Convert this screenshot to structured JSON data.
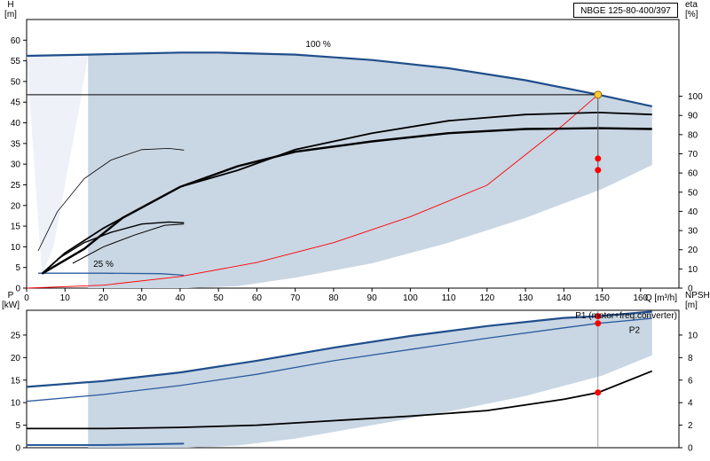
{
  "model_label": "NBGE 125-80-400/397",
  "colors": {
    "curve_dark": "#1f4e8c",
    "curve_mid": "#2a5c9e",
    "area_fill": "#c9d6e3",
    "area_light": "#eef2f8",
    "system_curve": "#ff0000",
    "marker": "#ff0000",
    "op_marker": "#ffcc33",
    "npsh": "#000000",
    "grid": "#bbbbbb"
  },
  "chart_data": [
    {
      "type": "line",
      "title": "",
      "xlabel": "Q [m³/h]",
      "ylabel_left": "H\n[m]",
      "ylabel_right": "eta\n[%]",
      "x_ticks": [
        0,
        10,
        20,
        30,
        40,
        50,
        60,
        70,
        80,
        90,
        100,
        110,
        120,
        130,
        140,
        150,
        160
      ],
      "y_ticks_left": [
        0,
        5,
        10,
        15,
        20,
        25,
        30,
        35,
        40,
        45,
        50,
        55,
        60
      ],
      "y_ticks_right": [
        0,
        10,
        20,
        30,
        40,
        50,
        60,
        70,
        80,
        90,
        100
      ],
      "xlim": [
        0,
        170
      ],
      "ylim": [
        0,
        65
      ],
      "ylim_right": [
        0,
        140
      ],
      "curve_labels": {
        "top": "100 %",
        "bottom": "25 %"
      },
      "operating_point": {
        "q": 148.9,
        "h": 46.8,
        "eta_1": 67.5,
        "eta_2": 61.5
      },
      "series": [
        {
          "role": "head-100",
          "points": [
            [
              0,
              56.2
            ],
            [
              16,
              56.5
            ],
            [
              40,
              57.0
            ],
            [
              50,
              57.0
            ],
            [
              70,
              56.5
            ],
            [
              90,
              55.2
            ],
            [
              110,
              53.2
            ],
            [
              130,
              50.3
            ],
            [
              149,
              46.8
            ],
            [
              163,
              44.0
            ]
          ]
        },
        {
          "role": "head-25",
          "points": [
            [
              3,
              3.6
            ],
            [
              20,
              3.6
            ],
            [
              35,
              3.5
            ],
            [
              41,
              3.1
            ]
          ]
        },
        {
          "role": "system-curve",
          "points": [
            [
              0,
              0
            ],
            [
              20,
              0.7
            ],
            [
              40,
              2.8
            ],
            [
              60,
              6.2
            ],
            [
              80,
              11.0
            ],
            [
              100,
              17.3
            ],
            [
              120,
              24.9
            ],
            [
              140,
              39.6
            ],
            [
              148.9,
              46.8
            ]
          ]
        },
        {
          "role": "eta-1",
          "points": [
            [
              4,
              3.5
            ],
            [
              10,
              8.5
            ],
            [
              20,
              14.5
            ],
            [
              30,
              19.5
            ],
            [
              40,
              24.5
            ],
            [
              55,
              28.5
            ],
            [
              70,
              33.5
            ],
            [
              90,
              37.5
            ],
            [
              110,
              40.5
            ],
            [
              130,
              42.0
            ],
            [
              149,
              42.5
            ],
            [
              163,
              42.0
            ]
          ]
        },
        {
          "role": "eta-2",
          "points": [
            [
              4,
              3.5
            ],
            [
              15,
              9.5
            ],
            [
              25,
              17.0
            ],
            [
              40,
              24.5
            ],
            [
              55,
              29.5
            ],
            [
              70,
              33.0
            ],
            [
              90,
              35.5
            ],
            [
              110,
              37.5
            ],
            [
              130,
              38.5
            ],
            [
              149,
              38.7
            ],
            [
              163,
              38.5
            ]
          ]
        },
        {
          "role": "eta-small-a",
          "points": [
            [
              3,
              9.0
            ],
            [
              8,
              18.5
            ],
            [
              15,
              26.5
            ],
            [
              22,
              31.0
            ],
            [
              30,
              33.5
            ],
            [
              37,
              33.8
            ],
            [
              41,
              33.4
            ]
          ]
        },
        {
          "role": "eta-small-b",
          "points": [
            [
              8,
              7.0
            ],
            [
              15,
              11.0
            ],
            [
              22,
              13.5
            ],
            [
              30,
              15.5
            ],
            [
              37,
              16.0
            ],
            [
              41,
              15.8
            ]
          ]
        },
        {
          "role": "eta-small-c",
          "points": [
            [
              12,
              6.0
            ],
            [
              20,
              10.0
            ],
            [
              28,
              12.8
            ],
            [
              36,
              15.2
            ],
            [
              41,
              15.5
            ]
          ]
        }
      ],
      "area_region": {
        "upper": [
          [
            0,
            56.2
          ],
          [
            16,
            56.5
          ],
          [
            40,
            57.0
          ],
          [
            50,
            57.0
          ],
          [
            70,
            56.5
          ],
          [
            90,
            55.2
          ],
          [
            110,
            53.2
          ],
          [
            130,
            50.3
          ],
          [
            149,
            46.8
          ],
          [
            163,
            44.0
          ]
        ],
        "lower": [
          [
            163,
            29.8
          ],
          [
            150,
            24.0
          ],
          [
            130,
            17.0
          ],
          [
            110,
            11.0
          ],
          [
            90,
            6.0
          ],
          [
            70,
            2.5
          ],
          [
            55,
            0.5
          ],
          [
            42,
            0.0
          ],
          [
            16,
            0.0
          ],
          [
            16,
            56.5
          ]
        ],
        "light_upper": [
          [
            0,
            56.2
          ],
          [
            16,
            56.5
          ],
          [
            14,
            45
          ],
          [
            10,
            25
          ],
          [
            7,
            10
          ],
          [
            4,
            3
          ]
        ],
        "light_lower": [
          [
            0,
            0
          ],
          [
            4,
            3
          ]
        ]
      }
    },
    {
      "type": "line",
      "title": "",
      "xlabel": "",
      "ylabel_left": "P\n[kW]",
      "ylabel_right": "NPSH\n[m]",
      "y_ticks_left": [
        0,
        5,
        10,
        15,
        20,
        25
      ],
      "y_ticks_right": [
        0,
        2,
        4,
        6,
        8,
        10
      ],
      "xlim": [
        0,
        170
      ],
      "ylim": [
        0,
        30.5
      ],
      "ylim_right": [
        0,
        12.2
      ],
      "series_labels": {
        "p1": "P1 (motor+freq.converter)",
        "p2": "P2"
      },
      "operating_point": {
        "q": 148.9,
        "p1": 29.2,
        "p2": 27.6,
        "npsh": 4.9
      },
      "series": [
        {
          "role": "p1",
          "points": [
            [
              0,
              13.5
            ],
            [
              20,
              14.8
            ],
            [
              40,
              16.7
            ],
            [
              60,
              19.3
            ],
            [
              80,
              22.2
            ],
            [
              100,
              24.8
            ],
            [
              120,
              27.0
            ],
            [
              140,
              28.8
            ],
            [
              149,
              29.2
            ],
            [
              163,
              30.2
            ]
          ]
        },
        {
          "role": "p2",
          "points": [
            [
              0,
              10.3
            ],
            [
              20,
              11.8
            ],
            [
              40,
              13.8
            ],
            [
              60,
              16.3
            ],
            [
              80,
              19.3
            ],
            [
              100,
              21.8
            ],
            [
              120,
              24.3
            ],
            [
              140,
              26.6
            ],
            [
              149,
              27.6
            ],
            [
              163,
              28.7
            ]
          ]
        },
        {
          "role": "npsh",
          "points": [
            [
              0,
              1.7
            ],
            [
              20,
              1.7
            ],
            [
              40,
              1.8
            ],
            [
              60,
              2.0
            ],
            [
              80,
              2.4
            ],
            [
              100,
              2.8
            ],
            [
              120,
              3.3
            ],
            [
              140,
              4.3
            ],
            [
              149,
              4.9
            ],
            [
              163,
              6.8
            ]
          ]
        },
        {
          "role": "p-25",
          "points": [
            [
              0,
              0.6
            ],
            [
              20,
              0.6
            ],
            [
              41,
              0.9
            ]
          ]
        }
      ],
      "area_region": {
        "upper": [
          [
            0,
            13.5
          ],
          [
            20,
            14.8
          ],
          [
            40,
            16.7
          ],
          [
            60,
            19.3
          ],
          [
            80,
            22.2
          ],
          [
            100,
            24.8
          ],
          [
            120,
            27.0
          ],
          [
            140,
            28.8
          ],
          [
            149,
            29.2
          ],
          [
            163,
            30.2
          ]
        ],
        "lower": [
          [
            163,
            20.5
          ],
          [
            150,
            16.0
          ],
          [
            130,
            11.5
          ],
          [
            110,
            8.0
          ],
          [
            90,
            5.0
          ],
          [
            70,
            2.0
          ],
          [
            55,
            0.5
          ],
          [
            42,
            0.0
          ],
          [
            16,
            0.0
          ],
          [
            16,
            14.8
          ]
        ]
      }
    }
  ]
}
